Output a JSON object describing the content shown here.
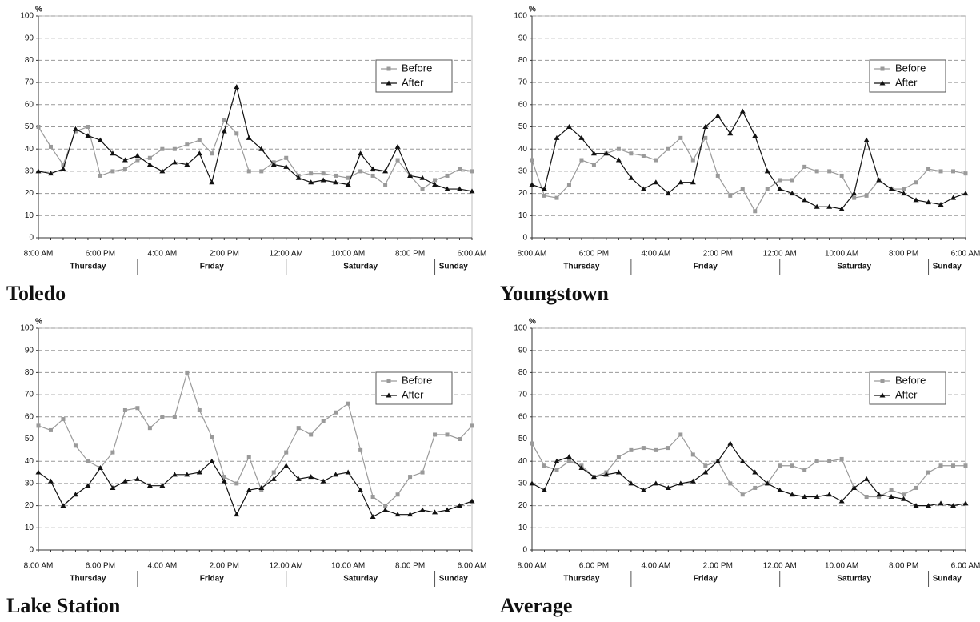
{
  "chart_data": [
    {
      "type": "line",
      "title": "Toledo",
      "y_label": "%",
      "categories": [
        "8:00 AM",
        null,
        null,
        null,
        null,
        "6:00 PM",
        null,
        null,
        null,
        null,
        "4:00 AM",
        null,
        null,
        null,
        null,
        "2:00 PM",
        null,
        null,
        null,
        null,
        "12:00 AM",
        null,
        null,
        null,
        null,
        "10:00 AM",
        null,
        null,
        null,
        null,
        "8:00 PM",
        null,
        null,
        null,
        null,
        "6:00 AM"
      ],
      "day_labels": [
        "Thursday",
        "Friday",
        "Saturday",
        "Sunday"
      ],
      "ylim": [
        0,
        100
      ],
      "yticks": [
        0,
        10,
        20,
        30,
        40,
        50,
        60,
        70,
        80,
        90,
        100
      ],
      "grid": true,
      "legend": "upper right",
      "series": [
        {
          "name": "Before",
          "color": "#9a9a9a",
          "marker": "square",
          "values": [
            50,
            41,
            33,
            48,
            50,
            28,
            30,
            31,
            35,
            36,
            40,
            40,
            42,
            44,
            38,
            53,
            47,
            30,
            30,
            34,
            36,
            28,
            29,
            29,
            28,
            27,
            30,
            28,
            24,
            35,
            28,
            22,
            26,
            28,
            31,
            30
          ]
        },
        {
          "name": "After",
          "color": "#111111",
          "marker": "triangle",
          "values": [
            30,
            29,
            31,
            49,
            46,
            44,
            38,
            35,
            37,
            33,
            30,
            34,
            33,
            38,
            25,
            48,
            68,
            45,
            40,
            33,
            32,
            27,
            25,
            26,
            25,
            24,
            38,
            31,
            30,
            41,
            28,
            27,
            24,
            22,
            22,
            21
          ]
        }
      ]
    },
    {
      "type": "line",
      "title": "Youngstown",
      "y_label": "%",
      "categories": [
        "8:00 AM",
        null,
        null,
        null,
        null,
        "6:00 PM",
        null,
        null,
        null,
        null,
        "4:00 AM",
        null,
        null,
        null,
        null,
        "2:00 PM",
        null,
        null,
        null,
        null,
        "12:00 AM",
        null,
        null,
        null,
        null,
        "10:00 AM",
        null,
        null,
        null,
        null,
        "8:00 PM",
        null,
        null,
        null,
        null,
        "6:00 AM"
      ],
      "day_labels": [
        "Thursday",
        "Friday",
        "Saturday",
        "Sunday"
      ],
      "ylim": [
        0,
        100
      ],
      "yticks": [
        0,
        10,
        20,
        30,
        40,
        50,
        60,
        70,
        80,
        90,
        100
      ],
      "grid": true,
      "legend": "upper right",
      "series": [
        {
          "name": "Before",
          "color": "#9a9a9a",
          "marker": "square",
          "values": [
            35,
            19,
            18,
            24,
            35,
            33,
            38,
            40,
            38,
            37,
            35,
            40,
            45,
            35,
            45,
            28,
            19,
            22,
            12,
            22,
            26,
            26,
            32,
            30,
            30,
            28,
            18,
            19,
            26,
            22,
            22,
            25,
            31,
            30,
            30,
            29
          ]
        },
        {
          "name": "After",
          "color": "#111111",
          "marker": "triangle",
          "values": [
            24,
            22,
            45,
            50,
            45,
            38,
            38,
            35,
            27,
            22,
            25,
            20,
            25,
            25,
            50,
            55,
            47,
            57,
            46,
            30,
            22,
            20,
            17,
            14,
            14,
            13,
            20,
            44,
            26,
            22,
            20,
            17,
            16,
            15,
            18,
            20
          ]
        }
      ]
    },
    {
      "type": "line",
      "title": "Lake Station",
      "y_label": "%",
      "categories": [
        "8:00 AM",
        null,
        null,
        null,
        null,
        "6:00 PM",
        null,
        null,
        null,
        null,
        "4:00 AM",
        null,
        null,
        null,
        null,
        "2:00 PM",
        null,
        null,
        null,
        null,
        "12:00 AM",
        null,
        null,
        null,
        null,
        "10:00 AM",
        null,
        null,
        null,
        null,
        "8:00 PM",
        null,
        null,
        null,
        null,
        "6:00 AM"
      ],
      "day_labels": [
        "Thursday",
        "Friday",
        "Saturday",
        "Sunday"
      ],
      "ylim": [
        0,
        100
      ],
      "yticks": [
        0,
        10,
        20,
        30,
        40,
        50,
        60,
        70,
        80,
        90,
        100
      ],
      "grid": true,
      "legend": "upper right",
      "series": [
        {
          "name": "Before",
          "color": "#9a9a9a",
          "marker": "square",
          "values": [
            56,
            54,
            59,
            47,
            40,
            37,
            44,
            63,
            64,
            55,
            60,
            60,
            80,
            63,
            51,
            33,
            30,
            42,
            27,
            35,
            44,
            55,
            52,
            58,
            62,
            66,
            45,
            24,
            20,
            25,
            33,
            35,
            52,
            52,
            50,
            56
          ]
        },
        {
          "name": "After",
          "color": "#111111",
          "marker": "triangle",
          "values": [
            35,
            31,
            20,
            25,
            29,
            37,
            28,
            31,
            32,
            29,
            29,
            34,
            34,
            35,
            40,
            31,
            16,
            27,
            28,
            32,
            38,
            32,
            33,
            31,
            34,
            35,
            27,
            15,
            18,
            16,
            16,
            18,
            17,
            18,
            20,
            22
          ]
        }
      ]
    },
    {
      "type": "line",
      "title": "Average",
      "y_label": "%",
      "categories": [
        "8:00 AM",
        null,
        null,
        null,
        null,
        "6:00 PM",
        null,
        null,
        null,
        null,
        "4:00 AM",
        null,
        null,
        null,
        null,
        "2:00 PM",
        null,
        null,
        null,
        null,
        "12:00 AM",
        null,
        null,
        null,
        null,
        "10:00 AM",
        null,
        null,
        null,
        null,
        "8:00 PM",
        null,
        null,
        null,
        null,
        "6:00 AM"
      ],
      "day_labels": [
        "Thursday",
        "Friday",
        "Saturday",
        "Sunday"
      ],
      "ylim": [
        0,
        100
      ],
      "yticks": [
        0,
        10,
        20,
        30,
        40,
        50,
        60,
        70,
        80,
        90,
        100
      ],
      "grid": true,
      "legend": "upper right",
      "series": [
        {
          "name": "Before",
          "color": "#9a9a9a",
          "marker": "square",
          "values": [
            48,
            38,
            36,
            40,
            38,
            33,
            35,
            42,
            45,
            46,
            45,
            46,
            52,
            43,
            38,
            40,
            30,
            25,
            28,
            30,
            38,
            38,
            36,
            40,
            40,
            41,
            28,
            24,
            24,
            27,
            25,
            28,
            35,
            38,
            38,
            38
          ]
        },
        {
          "name": "After",
          "color": "#111111",
          "marker": "triangle",
          "values": [
            30,
            27,
            40,
            42,
            37,
            33,
            34,
            35,
            30,
            27,
            30,
            28,
            30,
            31,
            35,
            40,
            48,
            40,
            35,
            30,
            27,
            25,
            24,
            24,
            25,
            22,
            28,
            32,
            25,
            24,
            23,
            20,
            20,
            21,
            20,
            21
          ]
        }
      ]
    }
  ]
}
